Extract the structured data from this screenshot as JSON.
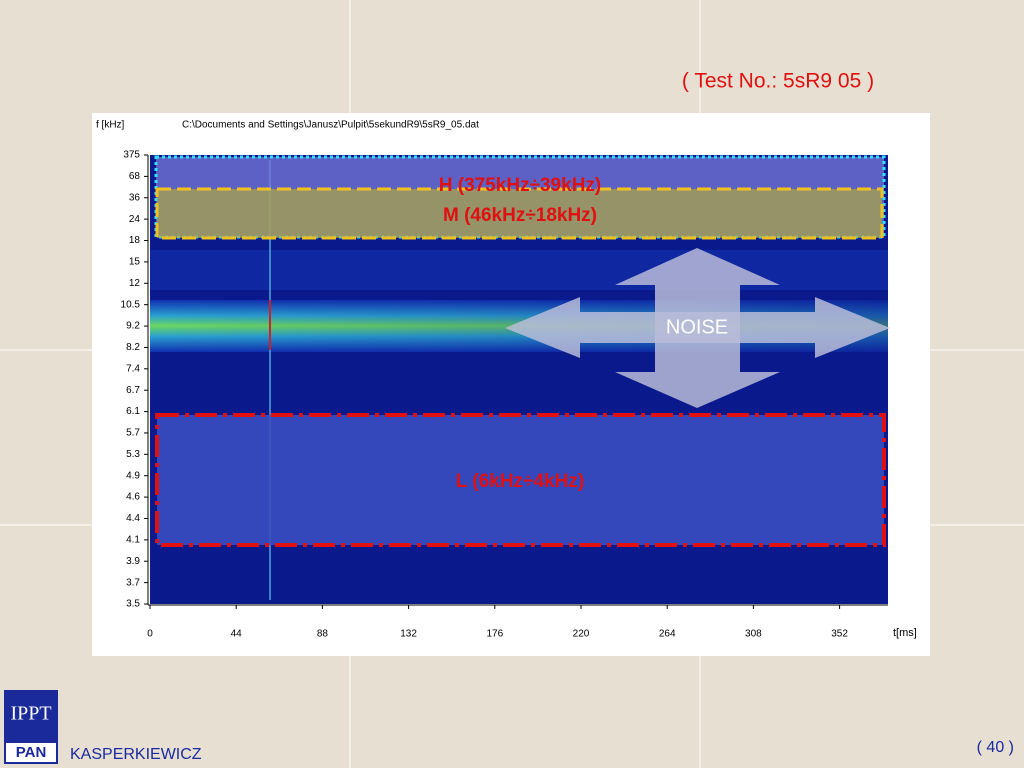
{
  "slide": {
    "title": "( Test No.: 5sR9 05 )",
    "author": "KASPERKIEWICZ",
    "page": "( 40 )",
    "logo": {
      "top": "IPPT",
      "bottom": "PAN"
    }
  },
  "plot": {
    "y_axis_label": "f [kHz]",
    "file_path": "C:\\Documents and Settings\\Janusz\\Pulpit\\5sekundR9\\5sR9_05.dat",
    "y_tick_labels": [
      "375",
      "68",
      "36",
      "24",
      "18",
      "15",
      "12",
      "10.5",
      "9.2",
      "8.2",
      "7.4",
      "6.7",
      "6.1",
      "5.7",
      "5.3",
      "4.9",
      "4.6",
      "4.4",
      "4.1",
      "3.9",
      "3.7",
      "3.5"
    ],
    "x_tick_labels": [
      "0",
      "44",
      "88",
      "132",
      "176",
      "220",
      "264",
      "308",
      "352"
    ],
    "x_axis_label": "t[ms]"
  },
  "annotations": {
    "h_band": "H    (375kHz÷39kHz)",
    "m_band": "M    (46kHz÷18kHz)",
    "l_band": "L    (6kHz÷4kHz)",
    "noise": "NOISE"
  }
}
